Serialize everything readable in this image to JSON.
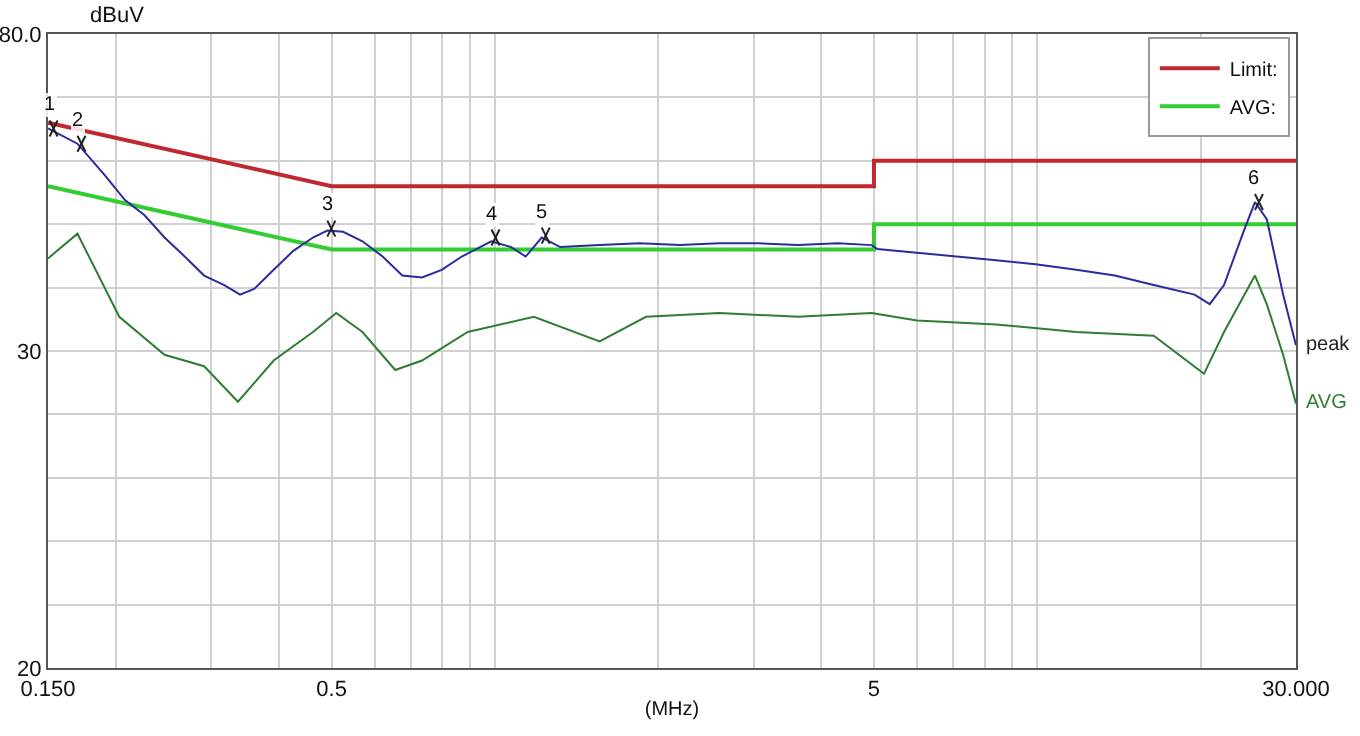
{
  "chart_data": {
    "type": "line",
    "xlabel": "(MHz)",
    "ylabel": "dBuV",
    "log": "x",
    "grid": true,
    "legend": "top right",
    "marker": "none",
    "line_style": "solid",
    "xlim": [
      0.15,
      30
    ],
    "ylim": [
      -20,
      80
    ],
    "xticks": [
      {
        "value": 0.15,
        "label": "0.150"
      },
      {
        "value": 0.2,
        "label": null
      },
      {
        "value": 0.3,
        "label": null
      },
      {
        "value": 0.4,
        "label": null
      },
      {
        "value": 0.5,
        "label": "0.5"
      },
      {
        "value": 0.6,
        "label": null
      },
      {
        "value": 0.7,
        "label": null
      },
      {
        "value": 0.8,
        "label": null
      },
      {
        "value": 0.9,
        "label": null
      },
      {
        "value": 1,
        "label": null
      },
      {
        "value": 2,
        "label": null
      },
      {
        "value": 3,
        "label": null
      },
      {
        "value": 4,
        "label": null
      },
      {
        "value": 5,
        "label": "5"
      },
      {
        "value": 6,
        "label": null
      },
      {
        "value": 7,
        "label": null
      },
      {
        "value": 8,
        "label": null
      },
      {
        "value": 9,
        "label": null
      },
      {
        "value": 10,
        "label": null
      },
      {
        "value": 20,
        "label": null
      },
      {
        "value": 30,
        "label": "30.000"
      }
    ],
    "yticks": [
      {
        "value": 80,
        "label": "80.0"
      },
      {
        "value": 70,
        "label": null
      },
      {
        "value": 60,
        "label": null
      },
      {
        "value": 50,
        "label": null
      },
      {
        "value": 40,
        "label": null
      },
      {
        "value": 30,
        "label": "30"
      },
      {
        "value": 20,
        "label": null
      },
      {
        "value": 10,
        "label": null
      },
      {
        "value": 0,
        "label": null
      },
      {
        "value": -10,
        "label": null
      },
      {
        "value": -20,
        "label": "20"
      }
    ],
    "series": [
      {
        "name": "Limit:",
        "color": "#c0282d",
        "x": [
          0.15,
          0.5,
          5,
          5,
          30
        ],
        "values": [
          66,
          56,
          56,
          60,
          60
        ]
      },
      {
        "name": "AVG:",
        "color": "#33cc33",
        "x": [
          0.15,
          0.5,
          5,
          5,
          30
        ],
        "values": [
          56,
          46,
          46,
          50,
          50
        ]
      },
      {
        "name": "peak",
        "color": "#2b2b9e",
        "x": [
          0.15,
          0.17,
          0.191,
          0.208,
          0.226,
          0.246,
          0.268,
          0.291,
          0.317,
          0.339,
          0.36,
          0.391,
          0.425,
          0.462,
          0.491,
          0.525,
          0.57,
          0.621,
          0.675,
          0.734,
          0.798,
          0.869,
          0.985,
          1.07,
          1.14,
          1.22,
          1.32,
          1.56,
          1.85,
          2.19,
          2.59,
          3.06,
          3.62,
          4.29,
          4.95,
          5.07,
          6.0,
          7.1,
          8.4,
          9.93,
          11.8,
          13.9,
          16.4,
          19.5,
          20.8,
          22.1,
          24.0,
          25.2,
          26.5,
          28.4,
          30
        ],
        "values": [
          65.1,
          62.7,
          57.7,
          53.8,
          51.4,
          47.9,
          44.9,
          41.9,
          40.4,
          38.9,
          39.8,
          42.8,
          45.8,
          47.9,
          49.0,
          48.8,
          47.3,
          44.9,
          41.9,
          41.6,
          42.8,
          44.9,
          47.3,
          46.4,
          44.9,
          47.9,
          46.4,
          46.7,
          47.0,
          46.7,
          47.0,
          47.0,
          46.7,
          47.0,
          46.7,
          46.1,
          45.5,
          44.9,
          44.3,
          43.7,
          42.8,
          41.9,
          40.4,
          38.9,
          37.4,
          40.4,
          48.8,
          53.5,
          50.8,
          38.9,
          30.9
        ]
      },
      {
        "name": "AVG",
        "color": "#2e7d32",
        "x": [
          0.15,
          0.17,
          0.203,
          0.246,
          0.291,
          0.336,
          0.391,
          0.462,
          0.51,
          0.57,
          0.655,
          0.734,
          0.891,
          1.18,
          1.56,
          1.9,
          2.59,
          3.62,
          4.95,
          6.0,
          8.4,
          11.8,
          16.4,
          20.3,
          22.1,
          25.2,
          26.5,
          28.4,
          30
        ],
        "values": [
          44.6,
          48.5,
          35.4,
          29.4,
          27.6,
          22.0,
          28.5,
          33.0,
          36.0,
          33.0,
          27.0,
          28.5,
          33.0,
          35.4,
          31.5,
          35.4,
          36.0,
          35.4,
          36.0,
          34.8,
          34.2,
          33.0,
          32.4,
          26.4,
          33.0,
          41.9,
          37.4,
          29.4,
          21.7
        ]
      }
    ],
    "annotations": [
      {
        "text": "1",
        "x": 0.151,
        "y": 65.1
      },
      {
        "text": "2",
        "x": 0.17,
        "y": 62.7
      },
      {
        "text": "3",
        "x": 0.491,
        "y": 49.3
      },
      {
        "text": "4",
        "x": 0.986,
        "y": 47.9
      },
      {
        "text": "5",
        "x": 1.22,
        "y": 48.2
      },
      {
        "text": "6",
        "x": 25.2,
        "y": 53.5
      }
    ]
  }
}
